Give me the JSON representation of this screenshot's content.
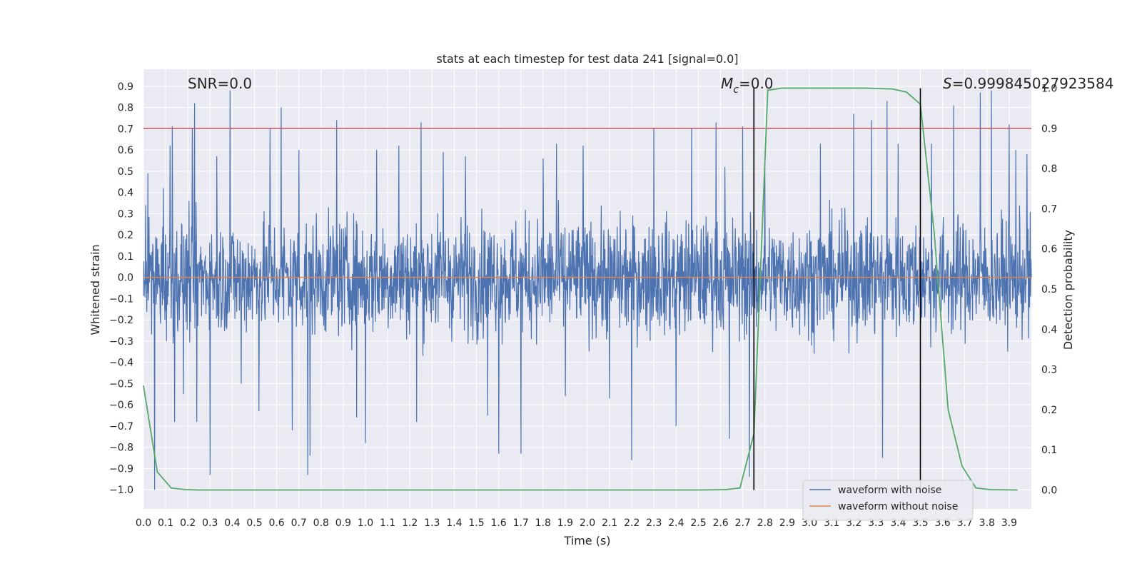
{
  "chart_data": {
    "type": "line",
    "title": "stats at each timestep for test data 241 [signal=0.0]",
    "xlabel": "Time (s)",
    "ylabel": "Whitened strain",
    "y2label": "Detection probability",
    "xlim": [
      0.0,
      4.0
    ],
    "ylim": [
      -1.09,
      0.98
    ],
    "y2lim": [
      -0.047,
      1.047
    ],
    "x_ticks": [
      "0.0",
      "0.1",
      "0.2",
      "0.3",
      "0.4",
      "0.5",
      "0.6",
      "0.7",
      "0.8",
      "0.9",
      "1.0",
      "1.1",
      "1.2",
      "1.3",
      "1.4",
      "1.5",
      "1.6",
      "1.7",
      "1.8",
      "1.9",
      "2.0",
      "2.1",
      "2.2",
      "2.3",
      "2.4",
      "2.5",
      "2.6",
      "2.7",
      "2.8",
      "2.9",
      "3.0",
      "3.1",
      "3.2",
      "3.3",
      "3.4",
      "3.5",
      "3.6",
      "3.7",
      "3.8",
      "3.9"
    ],
    "y_ticks": [
      "0.9",
      "0.8",
      "0.7",
      "0.6",
      "0.5",
      "0.4",
      "0.3",
      "0.2",
      "0.1",
      "0.0",
      "−0.1",
      "−0.2",
      "−0.3",
      "−0.4",
      "−0.5",
      "−0.6",
      "−0.7",
      "−0.8",
      "−0.9",
      "−1.0"
    ],
    "y2_ticks": [
      "1.0",
      "0.9",
      "0.8",
      "0.7",
      "0.6",
      "0.5",
      "0.4",
      "0.3",
      "0.2",
      "0.1",
      "0.0"
    ],
    "grid": true,
    "background": "#eaeaf2",
    "annotations": {
      "snr": "SNR=0.0",
      "mc_symbol": "M",
      "mc_sub": "c",
      "mc_value": "=0.0",
      "s_symbol": "S",
      "s_value": "=0.999845027923584"
    },
    "threshold": {
      "y2": 0.9,
      "color": "#c44e52"
    },
    "vertical_markers": [
      2.75,
      3.5
    ],
    "series": [
      {
        "name": "waveform with noise",
        "color": "#4c72b0",
        "description": "noise band, roughly within ±0.5 with spikes",
        "spikes": [
          [
            0.01,
            0.34
          ],
          [
            0.02,
            0.49
          ],
          [
            0.05,
            -1.0
          ],
          [
            0.09,
            0.42
          ],
          [
            0.12,
            0.62
          ],
          [
            0.13,
            0.71
          ],
          [
            0.14,
            -0.68
          ],
          [
            0.18,
            -0.55
          ],
          [
            0.22,
            0.7
          ],
          [
            0.23,
            0.82
          ],
          [
            0.24,
            -0.68
          ],
          [
            0.3,
            -0.93
          ],
          [
            0.33,
            0.57
          ],
          [
            0.39,
            0.88
          ],
          [
            0.44,
            -0.5
          ],
          [
            0.52,
            -0.63
          ],
          [
            0.57,
            0.7
          ],
          [
            0.62,
            0.8
          ],
          [
            0.67,
            -0.72
          ],
          [
            0.7,
            0.6
          ],
          [
            0.74,
            -0.93
          ],
          [
            0.75,
            -0.84
          ],
          [
            0.87,
            0.74
          ],
          [
            0.96,
            -0.66
          ],
          [
            1.0,
            -0.78
          ],
          [
            1.05,
            0.6
          ],
          [
            1.15,
            0.62
          ],
          [
            1.23,
            -0.68
          ],
          [
            1.25,
            -0.81
          ],
          [
            1.25,
            0.73
          ],
          [
            1.35,
            0.59
          ],
          [
            1.45,
            0.57
          ],
          [
            1.55,
            -0.65
          ],
          [
            1.6,
            -0.83
          ],
          [
            1.7,
            -0.83
          ],
          [
            1.8,
            0.56
          ],
          [
            1.86,
            0.63
          ],
          [
            1.9,
            -0.56
          ],
          [
            1.98,
            0.62
          ],
          [
            2.1,
            -0.57
          ],
          [
            2.2,
            -0.86
          ],
          [
            2.3,
            0.7
          ],
          [
            2.4,
            -0.7
          ],
          [
            2.47,
            0.7
          ],
          [
            2.58,
            0.73
          ],
          [
            2.62,
            0.52
          ],
          [
            2.64,
            -0.76
          ],
          [
            2.7,
            0.71
          ],
          [
            2.73,
            -0.94
          ],
          [
            2.8,
            0.56
          ],
          [
            3.05,
            0.63
          ],
          [
            3.2,
            0.77
          ],
          [
            3.28,
            0.74
          ],
          [
            3.33,
            -0.85
          ],
          [
            3.35,
            0.83
          ],
          [
            3.4,
            0.63
          ],
          [
            3.55,
            0.63
          ],
          [
            3.65,
            0.81
          ],
          [
            3.77,
            0.87
          ],
          [
            3.82,
            0.88
          ],
          [
            3.9,
            0.72
          ],
          [
            3.93,
            0.6
          ],
          [
            3.98,
            0.58
          ]
        ]
      },
      {
        "name": "waveform without noise",
        "color": "#dd8452",
        "x": [
          0.0,
          4.0
        ],
        "y": [
          0.0,
          0.0
        ]
      },
      {
        "name": "detection probability",
        "color": "#55a868",
        "axis": "right",
        "x": [
          0.0,
          0.0625,
          0.125,
          0.1875,
          0.25,
          0.3125,
          2.5,
          2.625,
          2.6875,
          2.75,
          2.8125,
          2.875,
          3.0,
          3.25,
          3.375,
          3.4375,
          3.5,
          3.5625,
          3.625,
          3.6875,
          3.75,
          3.8125,
          3.9375
        ],
        "y": [
          0.26,
          0.045,
          0.005,
          0.001,
          0.0,
          0.0,
          0.0,
          0.001,
          0.005,
          0.14,
          0.995,
          1.0,
          1.0,
          1.0,
          0.998,
          0.99,
          0.96,
          0.64,
          0.2,
          0.06,
          0.005,
          0.001,
          0.0
        ]
      }
    ],
    "legend": {
      "placement": "lower-right",
      "entries": [
        {
          "label": "waveform with noise",
          "color": "#4c72b0"
        },
        {
          "label": "waveform without noise",
          "color": "#dd8452"
        }
      ]
    }
  }
}
